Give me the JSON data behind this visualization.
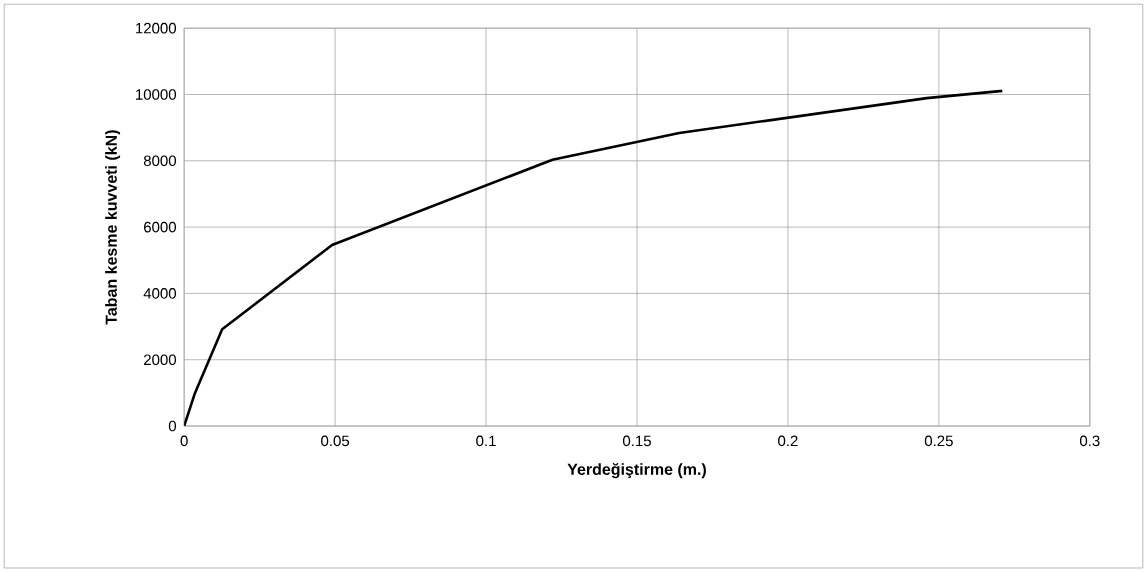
{
  "chart_data": {
    "type": "line",
    "xlabel": "Yerdeğiştirme (m.)",
    "ylabel": "Taban kesme kuvveti (kN)",
    "x": [
      0,
      0.0036,
      0.0126,
      0.049,
      0.122,
      0.164,
      0.246,
      0.271
    ],
    "values": [
      0,
      1000,
      2920,
      5460,
      8030,
      8840,
      9890,
      10110
    ],
    "color": "#000000",
    "xlim": [
      0,
      0.3
    ],
    "ylim": [
      0,
      12000
    ],
    "xticks": [
      0,
      0.05,
      0.1,
      0.15,
      0.2,
      0.25,
      0.3
    ],
    "yticks": [
      0,
      2000,
      4000,
      6000,
      8000,
      10000,
      12000
    ],
    "grid": true,
    "marker": "none",
    "line_style": "solid"
  }
}
